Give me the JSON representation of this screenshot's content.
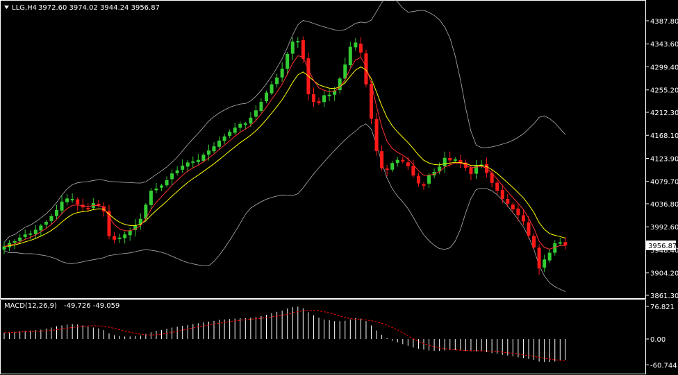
{
  "header": {
    "symbol": "LLG,H4",
    "ohlc": "3972.60 3974.02 3944.24 3956.87",
    "menu_icon": "triangle-down-icon"
  },
  "macd_header": {
    "label": "MACD(12,26,9)",
    "values": "-49.726 -49.059"
  },
  "colors": {
    "background": "#000000",
    "frame": "#ffffff",
    "bull": "#33cc33",
    "bear": "#ff1a1a",
    "ema_fast": "#ff3030",
    "ema_slow": "#ffff00",
    "bands": "#b0b0b0",
    "macd_hist": "#ffffff",
    "macd_signal": "#ff0000",
    "price_tag_bg": "#ffffff",
    "price_tag_fg": "#000000"
  },
  "chart_data": {
    "type": "candlestick",
    "price_axis": {
      "ticks": [
        "4387.80",
        "4343.60",
        "4299.40",
        "4255.20",
        "4212.30",
        "4168.10",
        "4123.90",
        "4079.70",
        "4036.80",
        "3992.60",
        "3948.40",
        "3904.20",
        "3861.30"
      ],
      "range": [
        3861.3,
        4409.0
      ],
      "current_price": "3956.87"
    },
    "macd_axis": {
      "ticks": [
        "76.821",
        "0.00",
        "-60.744"
      ],
      "range": [
        -70,
        80
      ]
    },
    "closes": [
      3955,
      3962,
      3965,
      3972,
      3978,
      3980,
      3987,
      3995,
      4002,
      4013,
      4025,
      4041,
      4047,
      4046,
      4036,
      4030,
      4028,
      4038,
      4034,
      4022,
      3975,
      3968,
      3972,
      3978,
      3985,
      3995,
      4008,
      4035,
      4062,
      4066,
      4072,
      4082,
      4095,
      4101,
      4110,
      4116,
      4118,
      4121,
      4131,
      4139,
      4147,
      4158,
      4166,
      4175,
      4183,
      4190,
      4191,
      4202,
      4216,
      4232,
      4250,
      4266,
      4279,
      4296,
      4324,
      4348,
      4349,
      4315,
      4247,
      4232,
      4230,
      4245,
      4246,
      4254,
      4277,
      4304,
      4338,
      4346,
      4327,
      4266,
      4200,
      4138,
      4105,
      4102,
      4115,
      4121,
      4118,
      4109,
      4091,
      4076,
      4074,
      4092,
      4098,
      4108,
      4125,
      4120,
      4122,
      4114,
      4106,
      4094,
      4110,
      4112,
      4096,
      4077,
      4062,
      4046,
      4037,
      4026,
      4015,
      4003,
      3976,
      3953,
      3913,
      3930,
      3943,
      3961,
      3963,
      3957
    ],
    "macd_hist": [
      15,
      16,
      17,
      18,
      19,
      20,
      21,
      22,
      24,
      27,
      30,
      32,
      34,
      35,
      34,
      32,
      29,
      27,
      25,
      21,
      13,
      9,
      7,
      6,
      6,
      7,
      8,
      12,
      16,
      19,
      21,
      24,
      27,
      29,
      31,
      33,
      35,
      37,
      39,
      41,
      43,
      45,
      46,
      47,
      48,
      49,
      49,
      50,
      52,
      54,
      57,
      61,
      64,
      67,
      72,
      75,
      76,
      72,
      63,
      56,
      50,
      46,
      44,
      42,
      42,
      43,
      46,
      49,
      48,
      42,
      32,
      20,
      10,
      2,
      -4,
      -8,
      -12,
      -16,
      -20,
      -23,
      -25,
      -27,
      -28,
      -28,
      -27,
      -26,
      -26,
      -27,
      -28,
      -29,
      -29,
      -29,
      -31,
      -33,
      -35,
      -37,
      -39,
      -41,
      -43,
      -45,
      -47,
      -49,
      -53,
      -54,
      -54,
      -53,
      -51,
      -49
    ]
  }
}
